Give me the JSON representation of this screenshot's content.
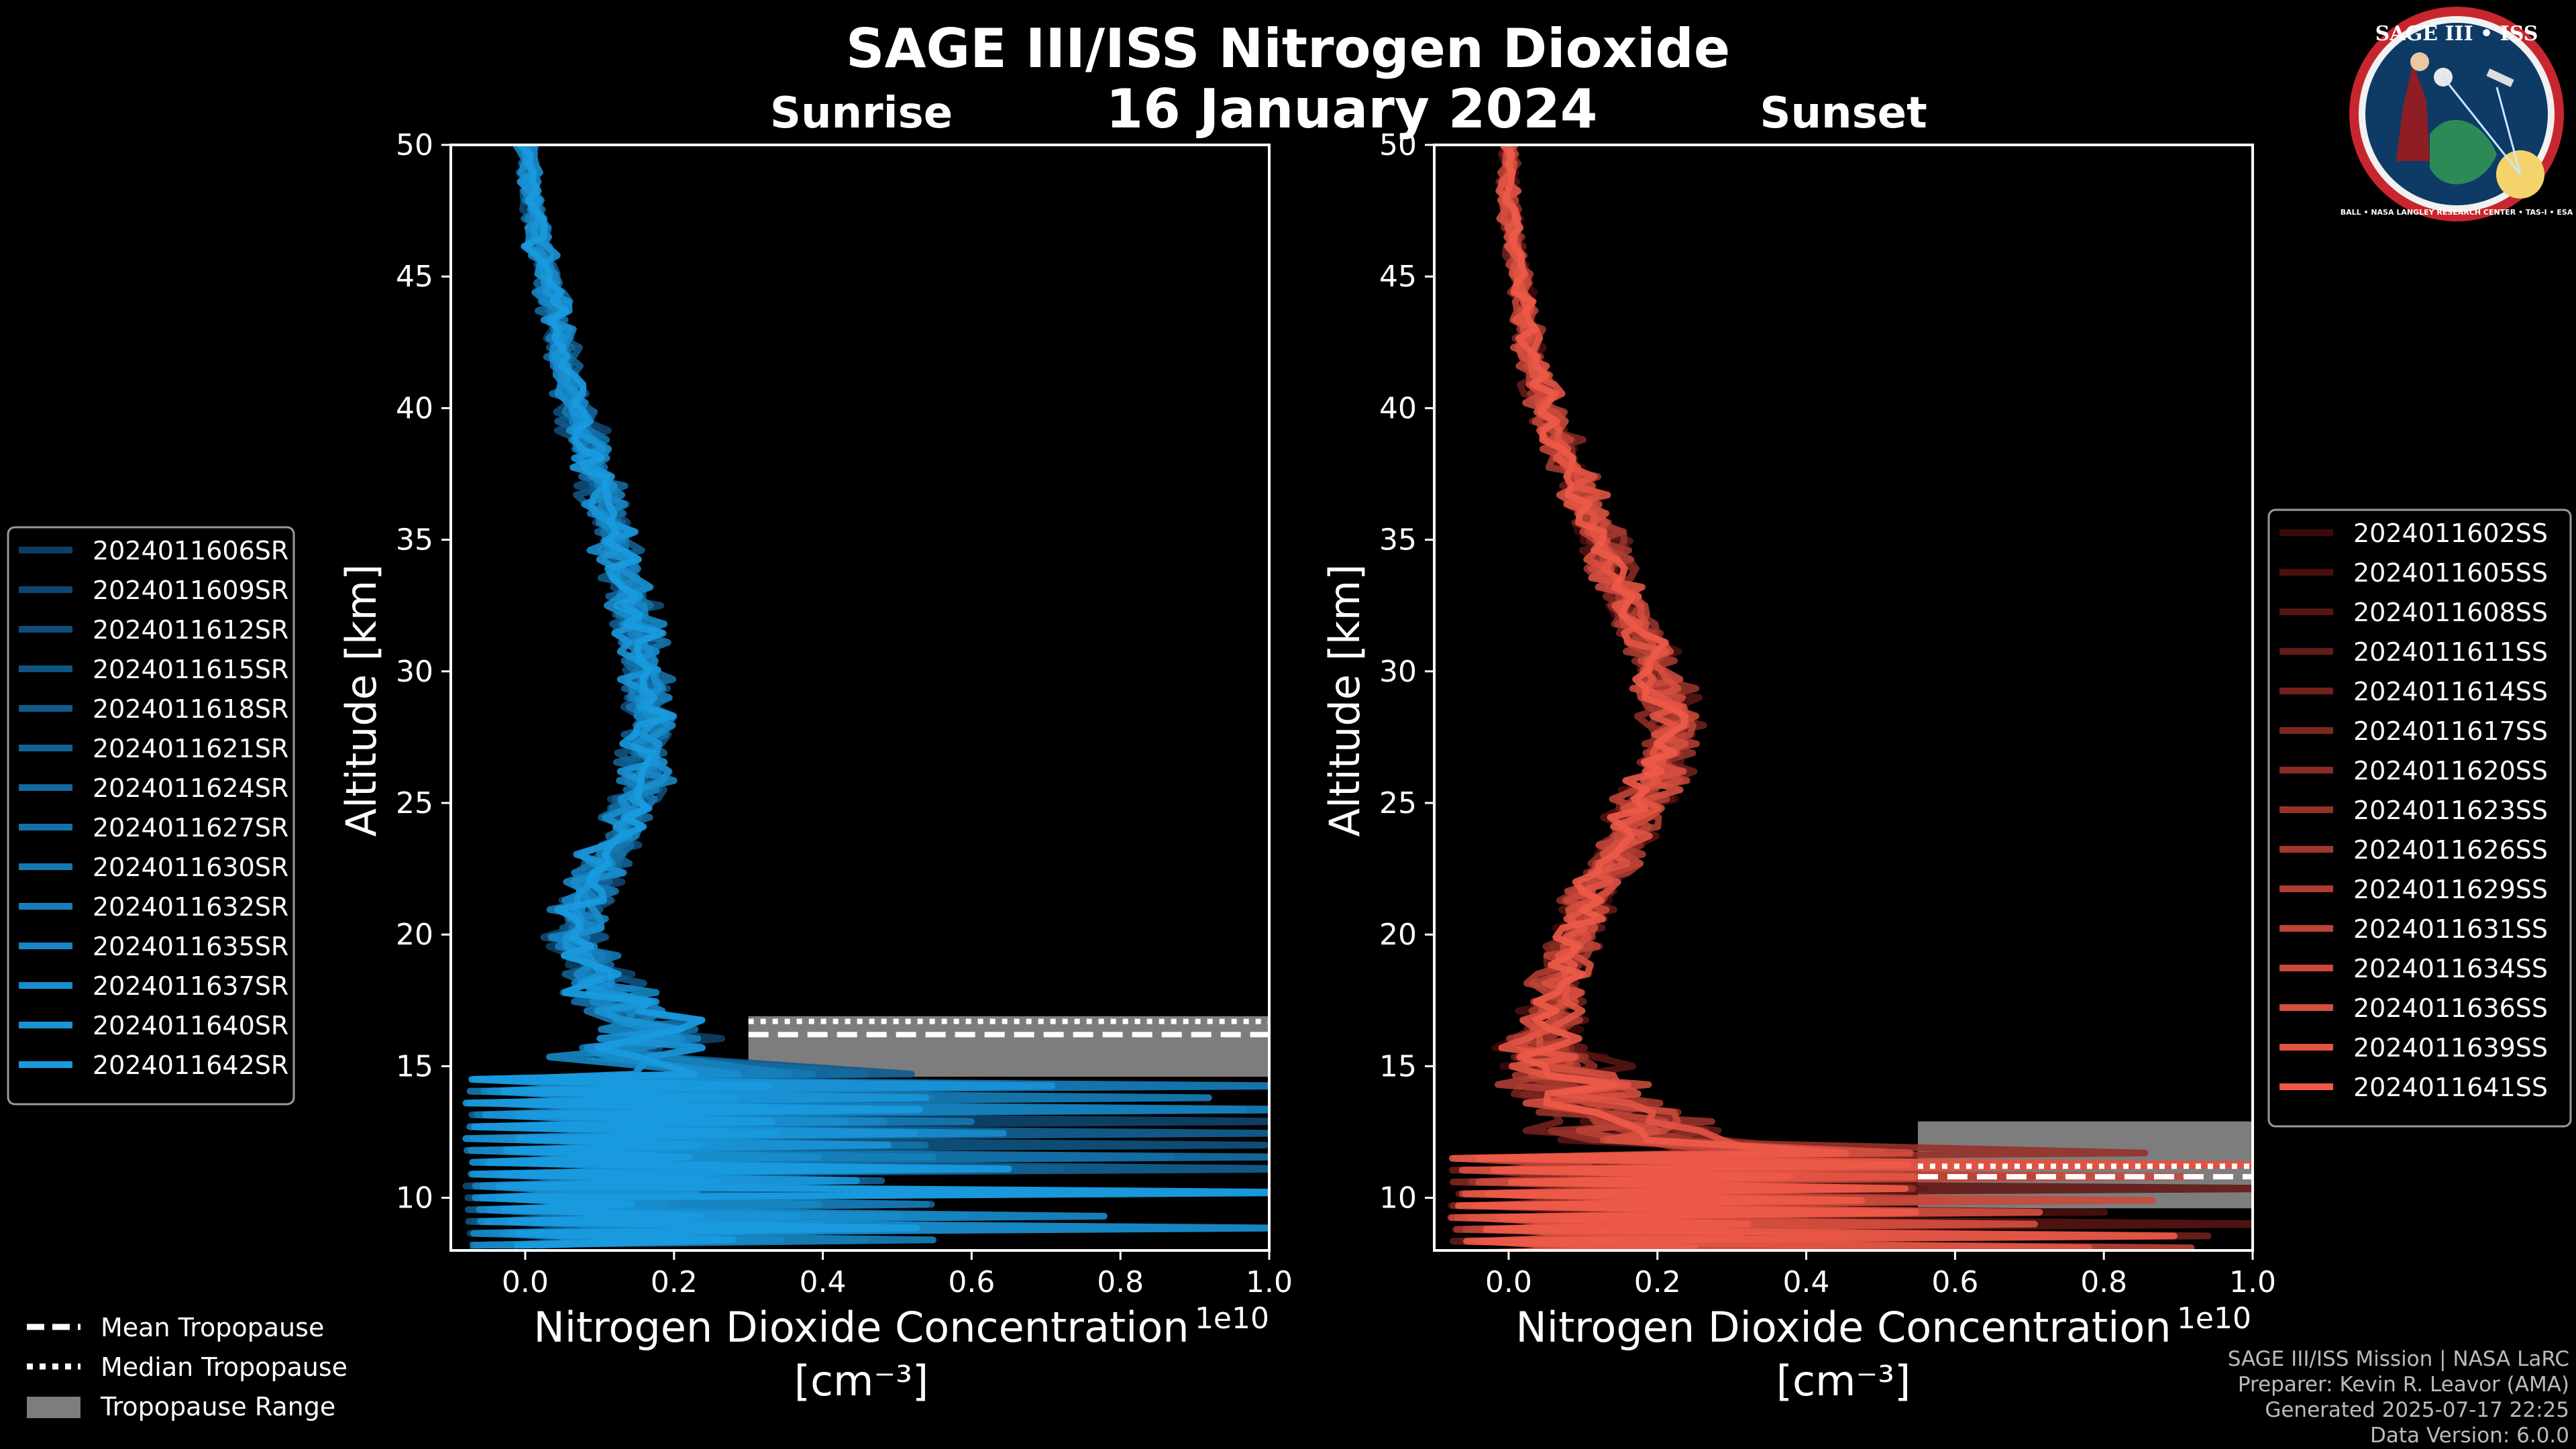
{
  "figure": {
    "title_line1": "SAGE III/ISS Nitrogen Dioxide",
    "title_line2": "16 January 2024",
    "credits": [
      "SAGE III/ISS Mission | NASA LaRC",
      "Preparer: Kevin R. Leavor (AMA)",
      "Generated 2025-07-17 22:25",
      "Data Version: 6.0.0"
    ],
    "logo": {
      "title": "SAGE III • ISS",
      "ring_text": "BALL • NASA LANGLEY RESEARCH CENTER • TAS-I • ESA"
    }
  },
  "tropopause_legend": [
    {
      "label": "Mean Tropopause",
      "style": "dashed"
    },
    {
      "label": "Median Tropopause",
      "style": "dotted"
    },
    {
      "label": "Tropopause Range",
      "style": "patch"
    }
  ],
  "chart_data": [
    {
      "type": "line",
      "title": "Sunrise",
      "xlabel": "Nitrogen Dioxide Concentration",
      "xlabel_units": "[cm⁻³]",
      "ylabel": "Altitude [km]",
      "x_scale_label": "1e10",
      "xlim": [
        -0.1,
        1.0
      ],
      "ylim": [
        8,
        50
      ],
      "xticks": [
        "0.0",
        "0.2",
        "0.4",
        "0.6",
        "0.8",
        "1.0"
      ],
      "yticks": [
        "10",
        "15",
        "20",
        "25",
        "30",
        "35",
        "40",
        "45",
        "50"
      ],
      "color_dark": "#0d3f66",
      "color_light": "#1a9be0",
      "tropopause": {
        "mean": 16.2,
        "median": 16.7,
        "range": [
          14.6,
          16.9
        ],
        "x_from": 0.3
      },
      "profile": {
        "altitude": [
          50,
          48,
          46,
          44,
          42,
          40,
          38,
          36,
          34,
          32,
          30,
          28,
          26,
          24,
          22,
          20,
          18,
          17,
          16,
          15
        ],
        "mean": [
          0.0,
          0.01,
          0.02,
          0.04,
          0.05,
          0.07,
          0.09,
          0.11,
          0.13,
          0.15,
          0.16,
          0.17,
          0.16,
          0.13,
          0.09,
          0.07,
          0.1,
          0.14,
          0.18,
          0.12
        ],
        "spread": [
          0.02,
          0.02,
          0.025,
          0.03,
          0.03,
          0.035,
          0.04,
          0.04,
          0.045,
          0.05,
          0.05,
          0.05,
          0.05,
          0.05,
          0.05,
          0.06,
          0.08,
          0.1,
          0.12,
          0.15
        ]
      },
      "series": [
        {
          "name": "2024011606SR"
        },
        {
          "name": "2024011609SR"
        },
        {
          "name": "2024011612SR"
        },
        {
          "name": "2024011615SR"
        },
        {
          "name": "2024011618SR"
        },
        {
          "name": "2024011621SR"
        },
        {
          "name": "2024011624SR"
        },
        {
          "name": "2024011627SR"
        },
        {
          "name": "2024011630SR"
        },
        {
          "name": "2024011632SR"
        },
        {
          "name": "2024011635SR"
        },
        {
          "name": "2024011637SR"
        },
        {
          "name": "2024011640SR"
        },
        {
          "name": "2024011642SR"
        }
      ]
    },
    {
      "type": "line",
      "title": "Sunset",
      "xlabel": "Nitrogen Dioxide Concentration",
      "xlabel_units": "[cm⁻³]",
      "ylabel": "Altitude [km]",
      "x_scale_label": "1e10",
      "xlim": [
        -0.1,
        1.0
      ],
      "ylim": [
        8,
        50
      ],
      "xticks": [
        "0.0",
        "0.2",
        "0.4",
        "0.6",
        "0.8",
        "1.0"
      ],
      "yticks": [
        "10",
        "15",
        "20",
        "25",
        "30",
        "35",
        "40",
        "45",
        "50"
      ],
      "color_dark": "#3d0a0a",
      "color_light": "#ee5a48",
      "tropopause": {
        "mean": 10.8,
        "median": 11.2,
        "range": [
          9.6,
          12.9
        ],
        "x_from": 0.55
      },
      "profile": {
        "altitude": [
          50,
          48,
          46,
          44,
          42,
          40,
          38,
          36,
          34,
          32,
          30,
          28,
          26,
          24,
          22,
          20,
          18,
          16,
          14,
          12
        ],
        "mean": [
          0.0,
          0.0,
          0.01,
          0.02,
          0.03,
          0.05,
          0.08,
          0.11,
          0.14,
          0.17,
          0.2,
          0.22,
          0.2,
          0.16,
          0.12,
          0.09,
          0.07,
          0.05,
          0.1,
          0.2
        ],
        "spread": [
          0.015,
          0.02,
          0.02,
          0.025,
          0.03,
          0.035,
          0.04,
          0.045,
          0.05,
          0.05,
          0.055,
          0.06,
          0.06,
          0.055,
          0.05,
          0.05,
          0.06,
          0.08,
          0.15,
          0.2
        ]
      },
      "series": [
        {
          "name": "2024011602SS"
        },
        {
          "name": "2024011605SS"
        },
        {
          "name": "2024011608SS"
        },
        {
          "name": "2024011611SS"
        },
        {
          "name": "2024011614SS"
        },
        {
          "name": "2024011617SS"
        },
        {
          "name": "2024011620SS"
        },
        {
          "name": "2024011623SS"
        },
        {
          "name": "2024011626SS"
        },
        {
          "name": "2024011629SS"
        },
        {
          "name": "2024011631SS"
        },
        {
          "name": "2024011634SS"
        },
        {
          "name": "2024011636SS"
        },
        {
          "name": "2024011639SS"
        },
        {
          "name": "2024011641SS"
        }
      ]
    }
  ]
}
